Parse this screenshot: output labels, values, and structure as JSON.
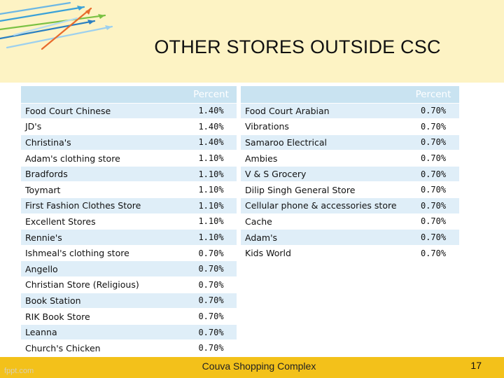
{
  "title": "OTHER STORES OUTSIDE CSC",
  "footer": {
    "text": "Couva Shopping Complex",
    "page_number": "17",
    "watermark": "fppt.com"
  },
  "colors": {
    "header_band": "#fdf3c4",
    "footer_band": "#f3c11a",
    "table_header": "#c9e3f1",
    "row_stripe": "#dfeef8"
  },
  "left_table": {
    "header": {
      "name": "",
      "percent": "Percent"
    },
    "rows": [
      {
        "name": "Food Court Chinese",
        "percent": "1.40%"
      },
      {
        "name": "JD's",
        "percent": "1.40%"
      },
      {
        "name": "Christina's",
        "percent": "1.40%"
      },
      {
        "name": "Adam's clothing store",
        "percent": "1.10%"
      },
      {
        "name": "Bradfords",
        "percent": "1.10%"
      },
      {
        "name": "Toymart",
        "percent": "1.10%"
      },
      {
        "name": "First Fashion Clothes Store",
        "percent": "1.10%"
      },
      {
        "name": "Excellent Stores",
        "percent": "1.10%"
      },
      {
        "name": "Rennie's",
        "percent": "1.10%"
      },
      {
        "name": "Ishmeal's clothing store",
        "percent": "0.70%"
      },
      {
        "name": "Angello",
        "percent": "0.70%"
      },
      {
        "name": "Christian Store (Religious)",
        "percent": "0.70%"
      },
      {
        "name": "Book Station",
        "percent": "0.70%"
      },
      {
        "name": "RIK Book Store",
        "percent": "0.70%"
      },
      {
        "name": "Leanna",
        "percent": "0.70%"
      },
      {
        "name": "Church's Chicken",
        "percent": "0.70%"
      }
    ]
  },
  "right_table": {
    "header": {
      "name": "",
      "percent": "Percent"
    },
    "rows": [
      {
        "name": "Food Court Arabian",
        "percent": "0.70%"
      },
      {
        "name": "Vibrations",
        "percent": "0.70%"
      },
      {
        "name": "Samaroo Electrical",
        "percent": "0.70%"
      },
      {
        "name": "Ambies",
        "percent": "0.70%"
      },
      {
        "name": "V & S Grocery",
        "percent": "0.70%"
      },
      {
        "name": "Dilip Singh General Store",
        "percent": "0.70%"
      },
      {
        "name": "Cellular phone & accessories store",
        "percent": "0.70%"
      },
      {
        "name": "Cache",
        "percent": "0.70%"
      },
      {
        "name": "Adam's",
        "percent": "0.70%"
      },
      {
        "name": "Kids World",
        "percent": "0.70%"
      }
    ]
  }
}
